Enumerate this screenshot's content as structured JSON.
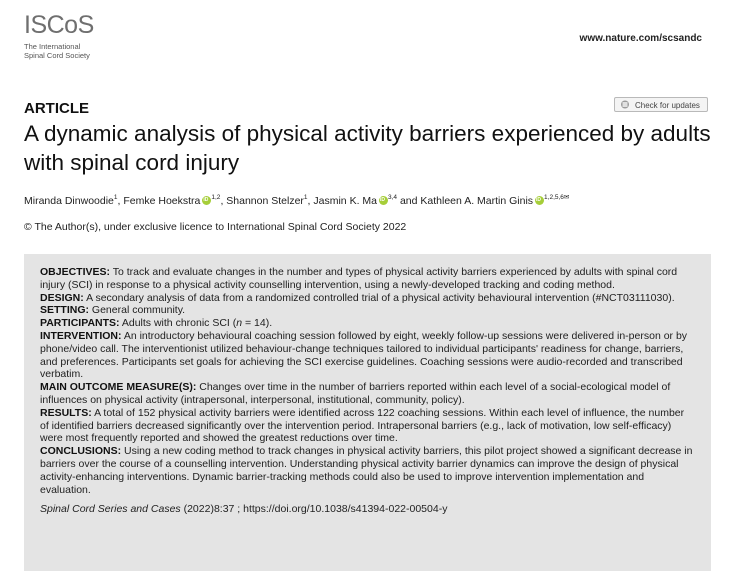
{
  "logo": {
    "name": "ISCoS",
    "line1": "The International",
    "line2": "Spinal Cord Society"
  },
  "header": {
    "site_url": "www.nature.com/scsandc",
    "check_updates": "Check for updates"
  },
  "article": {
    "label": "ARTICLE",
    "title": "A dynamic analysis of physical activity barriers experienced by adults with spinal cord injury",
    "authors": [
      {
        "name": "Miranda Dinwoodie",
        "aff": "1",
        "orcid": false
      },
      {
        "name": "Femke Hoekstra",
        "aff": "1,2",
        "orcid": true
      },
      {
        "name": "Shannon Stelzer",
        "aff": "1",
        "orcid": false
      },
      {
        "name": "Jasmin K. Ma",
        "aff": "3,4",
        "orcid": true
      },
      {
        "name": "Kathleen A. Martin Ginis",
        "aff": "1,2,5,6✉",
        "orcid": true
      }
    ],
    "license": "© The Author(s), under exclusive licence to International Spinal Cord Society 2022"
  },
  "abstract": {
    "objectives_label": "OBJECTIVES:",
    "objectives": "To track and evaluate changes in the number and types of physical activity barriers experienced by adults with spinal cord injury (SCI) in response to a physical activity counselling intervention, using a newly-developed tracking and coding method.",
    "design_label": "DESIGN:",
    "design": "A secondary analysis of data from a randomized controlled trial of a physical activity behavioural intervention (#NCT03111030).",
    "setting_label": "SETTING:",
    "setting": "General community.",
    "participants_label": "PARTICIPANTS:",
    "participants_pre": "Adults with chronic SCI (",
    "participants_n": "n",
    "participants_post": " = 14).",
    "intervention_label": "INTERVENTION:",
    "intervention": "An introductory behavioural coaching session followed by eight, weekly follow-up sessions were delivered in-person or by phone/video call. The interventionist utilized behaviour-change techniques tailored to individual participants' readiness for change, barriers, and preferences. Participants set goals for achieving the SCI exercise guidelines. Coaching sessions were audio-recorded and transcribed verbatim.",
    "outcome_label": "MAIN OUTCOME MEASURE(S):",
    "outcome": "Changes over time in the number of barriers reported within each level of a social-ecological model of influences on physical activity (intrapersonal, interpersonal, institutional, community, policy).",
    "results_label": "RESULTS:",
    "results": "A total of 152 physical activity barriers were identified across 122 coaching sessions. Within each level of influence, the number of identified barriers decreased significantly over the intervention period. Intrapersonal barriers (e.g., lack of motivation, low self-efficacy) were most frequently reported and showed the greatest reductions over time.",
    "conclusions_label": "CONCLUSIONS:",
    "conclusions": "Using a new coding method to track changes in physical activity barriers, this pilot project showed a significant decrease in barriers over the course of a counselling intervention. Understanding physical activity barrier dynamics can improve the design of physical activity-enhancing interventions. Dynamic barrier-tracking methods could also be used to improve intervention implementation and evaluation.",
    "citation_journal": "Spinal Cord Series and Cases",
    "citation_rest": " (2022)8:37 ; https://doi.org/10.1038/s41394-022-00504-y"
  }
}
